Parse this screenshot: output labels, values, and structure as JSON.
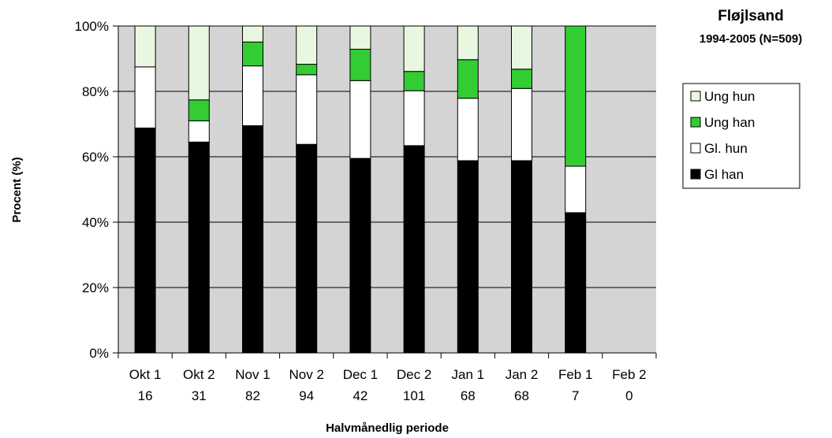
{
  "chart_data": {
    "type": "bar",
    "stacked": true,
    "title": "Fløjlsand",
    "subtitle": "1994-2005 (N=509)",
    "xlabel": "Halvmånedlig periode",
    "ylabel": "Procent (%)",
    "ylim": [
      0,
      100
    ],
    "y_ticks": [
      "0%",
      "20%",
      "40%",
      "60%",
      "80%",
      "100%"
    ],
    "categories": [
      "Okt 1",
      "Okt 2",
      "Nov 1",
      "Nov 2",
      "Dec 1",
      "Dec 2",
      "Jan 1",
      "Jan 2",
      "Feb 1",
      "Feb 2"
    ],
    "counts": [
      "16",
      "31",
      "82",
      "94",
      "42",
      "101",
      "68",
      "68",
      "7",
      "0"
    ],
    "series": [
      {
        "name": "Gl han",
        "color": "#000000",
        "values": [
          68.8,
          64.5,
          69.5,
          63.8,
          59.5,
          63.4,
          58.8,
          58.8,
          42.9,
          0
        ]
      },
      {
        "name": "Gl. hun",
        "color": "#ffffff",
        "values": [
          18.7,
          6.5,
          18.3,
          21.3,
          23.8,
          16.8,
          19.1,
          22.1,
          14.2,
          0
        ]
      },
      {
        "name": "Ung han",
        "color": "#33cc33",
        "values": [
          0,
          6.4,
          7.3,
          3.2,
          9.6,
          5.9,
          11.8,
          5.9,
          42.9,
          0
        ]
      },
      {
        "name": "Ung hun",
        "color": "#e8f8e0",
        "values": [
          12.5,
          22.6,
          4.9,
          11.7,
          7.1,
          13.9,
          10.3,
          13.2,
          0,
          0
        ]
      }
    ],
    "legend_order": [
      "Ung hun",
      "Ung han",
      "Gl. hun",
      "Gl han"
    ],
    "plot_background": "#d4d4d4",
    "grid": true,
    "legend_position": "right"
  }
}
